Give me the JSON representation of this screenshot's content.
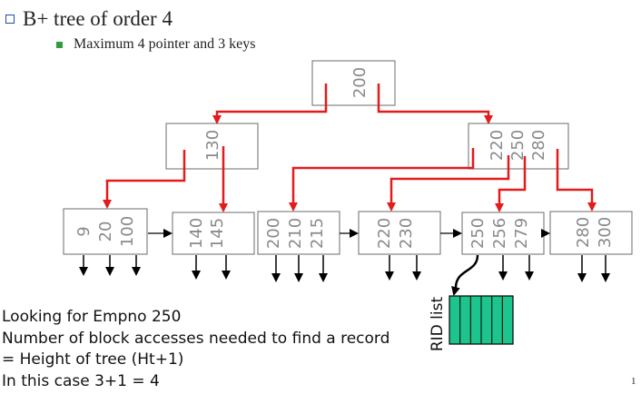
{
  "title": "B+ tree of order 4",
  "subtitle": "Maximum 4 pointer and 3 keys",
  "nodes": {
    "root": [
      "200"
    ],
    "internal_left": [
      "130"
    ],
    "internal_right": [
      "220",
      "250",
      "280"
    ],
    "leaf1": [
      "9",
      "20",
      "100"
    ],
    "leaf2": [
      "140",
      "145"
    ],
    "leaf3": [
      "200",
      "210",
      "215"
    ],
    "leaf4": [
      "220",
      "230"
    ],
    "leaf5": [
      "250",
      "256",
      "279"
    ],
    "leaf6": [
      "280",
      "300"
    ]
  },
  "rid_label": "RID list",
  "colors": {
    "pointer": "#e31b1b",
    "node_border": "#6b6b6b",
    "rid_fill": "#1ec48e",
    "key_text": "#8a8a8a"
  },
  "notes": [
    "Looking for Empno 250",
    "Number of block accesses needed to find a record",
    "= Height of tree (Ht+1)",
    "In this case 3+1 = 4"
  ],
  "page_number": "1"
}
